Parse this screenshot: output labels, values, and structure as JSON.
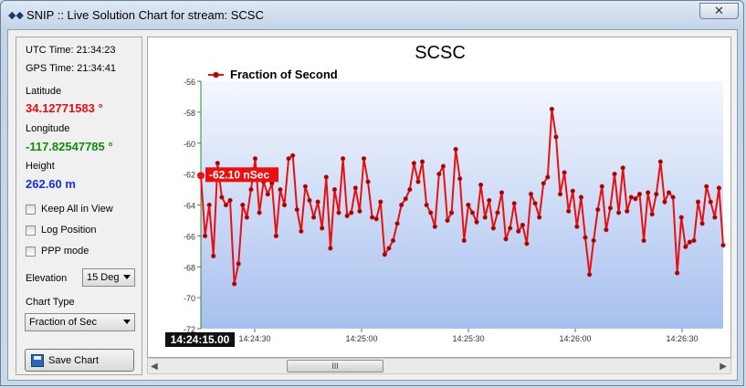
{
  "window": {
    "icon": "satellite-arrows-icon",
    "title": "SNIP :: Live Solution Chart for stream:  SCSC",
    "close_label": "✕"
  },
  "left_panel": {
    "utc_time": "UTC Time: 21:34:23",
    "gps_time": "GPS Time: 21:34:41",
    "latitude_label": "Latitude",
    "latitude_value": "34.12771583 °",
    "longitude_label": "Longitude",
    "longitude_value": "-117.82547785 °",
    "height_label": "Height",
    "height_value": "262.60 m",
    "keep_all_label": "Keep All in View",
    "log_position_label": "Log Position",
    "ppp_mode_label": "PPP mode",
    "elevation_label": "Elevation",
    "elevation_value": "15 Deg",
    "chart_type_label": "Chart Type",
    "chart_type_value": "Fraction of Sec",
    "save_label": "Save Chart",
    "colors": {
      "latitude": "#e01010",
      "longitude": "#118a11",
      "height": "#1a2fd0"
    }
  },
  "scrollbar": {
    "grip": "III"
  },
  "chart_data": {
    "type": "line",
    "title": "SCSC",
    "series": [
      {
        "name": "Fraction of Second",
        "color": "#e81010",
        "values": [
          -62.1,
          -66,
          -64,
          -67.3,
          -61.3,
          -63.5,
          -64,
          -63.7,
          -69.1,
          -67.8,
          -64,
          -64.8,
          -63,
          -61,
          -64.5,
          -62.5,
          -63.3,
          -62.6,
          -66,
          -63,
          -64,
          -61,
          -60.8,
          -64.3,
          -65.7,
          -62.8,
          -63.7,
          -64.8,
          -63.8,
          -65.5,
          -62.2,
          -66.8,
          -63,
          -64.5,
          -61,
          -64.7,
          -64.5,
          -62.9,
          -64.4,
          -61,
          -62.5,
          -64.8,
          -64.9,
          -63.8,
          -67.2,
          -66.8,
          -66.3,
          -65.2,
          -64,
          -63.6,
          -63,
          -61.3,
          -62.5,
          -61.2,
          -64,
          -64.5,
          -65.4,
          -62,
          -61.5,
          -65,
          -64.5,
          -60.4,
          -62.3,
          -66.3,
          -64,
          -64.5,
          -65.1,
          -62.7,
          -64.8,
          -63.7,
          -65.5,
          -64.5,
          -63.2,
          -66.2,
          -65.5,
          -63.9,
          -65.7,
          -65.3,
          -66.5,
          -63.3,
          -63.9,
          -64.8,
          -62.6,
          -62.2,
          -57.8,
          -59.6,
          -63.3,
          -61.9,
          -64.4,
          -63.1,
          -65.4,
          -63.5,
          -66.1,
          -68.5,
          -66.3,
          -64.3,
          -62.8,
          -65.6,
          -64.2,
          -62,
          -64.5,
          -61.6,
          -64.4,
          -63.5,
          -63.6,
          -63.3,
          -66.3,
          -63.2,
          -64.6,
          -63.3,
          -61.2,
          -63.8,
          -63.2,
          -63.5,
          -68.4,
          -64.8,
          -66.7,
          -66.4,
          -66.3,
          -63.8,
          -65.2,
          -62.8,
          -63.8,
          -64.8,
          -62.9,
          -66.6
        ],
        "last_point_label": "-62.10 nSec"
      }
    ],
    "x_tick_labels": [
      "14:24:30",
      "14:25:00",
      "14:25:30",
      "14:26:00",
      "14:26:30"
    ],
    "x_highlight_label": "14:24:15.00",
    "y_ticks": [
      -56,
      -58,
      -60,
      -62,
      -64,
      -66,
      -68,
      -70,
      -72
    ],
    "ylim": [
      -72,
      -56
    ],
    "grid": false,
    "legend_position": "top-left"
  }
}
